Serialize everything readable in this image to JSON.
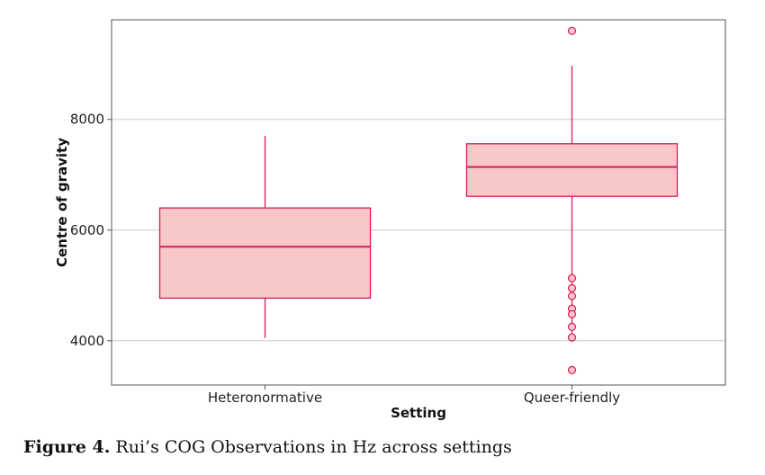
{
  "chart_data": {
    "type": "box",
    "xlabel": "Setting",
    "ylabel": "Centre of gravity",
    "ylim": [
      3200,
      9800
    ],
    "yticks": [
      4000,
      6000,
      8000
    ],
    "grid": "horizontal",
    "colors": {
      "box_fill": "#f8c7c7",
      "box_stroke": "#d81b60",
      "grid": "#cccccc",
      "frame": "#555555"
    },
    "categories": [
      "Heteronormative",
      "Queer-friendly"
    ],
    "boxes": [
      {
        "category": "Heteronormative",
        "whisker_low": 4050,
        "q1": 4770,
        "median": 5700,
        "q3": 6400,
        "whisker_high": 7700,
        "outliers": []
      },
      {
        "category": "Queer-friendly",
        "whisker_low": 4130,
        "q1": 6610,
        "median": 7140,
        "q3": 7560,
        "whisker_high": 8970,
        "outliers": [
          9600,
          5130,
          4950,
          4810,
          4580,
          4480,
          4250,
          4060,
          3470
        ]
      }
    ]
  },
  "caption": {
    "label": "Figure 4.",
    "text": "Rui’s COG Observations in Hz across settings"
  }
}
